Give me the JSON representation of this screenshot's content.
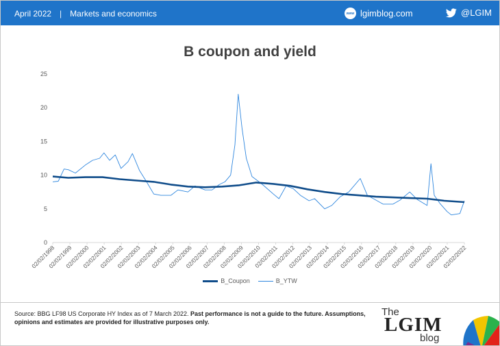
{
  "header": {
    "date": "April 2022",
    "separator": "|",
    "section": "Markets and economics",
    "site_icon_text": "www",
    "site": "lgimblog.com",
    "twitter": "@LGIM"
  },
  "footer": {
    "source_plain": "Source: BBG LF98 US Corporate HY Index as of 7 March 2022.",
    "source_bold": "Past performance is not a guide to the future. Assumptions, opinions and estimates are provided for illustrative purposes only.",
    "logo_the": "The",
    "logo_lgim": "LGIM",
    "logo_blog": "blog"
  },
  "colors": {
    "header_bg": "#1f74c9",
    "coupon": "#0f4c8a",
    "ytw": "#2e86de"
  },
  "chart_data": {
    "type": "line",
    "title": "B coupon and yield",
    "xlabel": "",
    "ylabel": "",
    "ylim": [
      0,
      25
    ],
    "yticks": [
      0,
      5,
      10,
      15,
      20,
      25
    ],
    "xlim": [
      "1998-02-02",
      "2022-03-07"
    ],
    "x_tick_labels": [
      "02/02/1998",
      "02/02/1999",
      "02/02/2000",
      "02/02/2001",
      "02/02/2002",
      "02/02/2003",
      "02/02/2004",
      "02/02/2005",
      "02/02/2006",
      "02/02/2007",
      "02/02/2008",
      "02/02/2009",
      "02/02/2010",
      "02/02/2011",
      "02/02/2012",
      "02/02/2013",
      "02/02/2014",
      "02/02/2015",
      "02/02/2016",
      "02/02/2017",
      "02/02/2018",
      "02/02/2019",
      "02/02/2020",
      "02/02/2021",
      "02/02/2022"
    ],
    "grid": false,
    "legend": "bottom",
    "series": [
      {
        "name": "B_Coupon",
        "x": [
          "1998-02-02",
          "1999-01-01",
          "2000-01-01",
          "2001-01-01",
          "2002-01-01",
          "2003-01-01",
          "2004-01-01",
          "2005-01-01",
          "2006-01-01",
          "2007-01-01",
          "2008-01-01",
          "2009-01-01",
          "2010-01-01",
          "2011-01-01",
          "2012-01-01",
          "2013-01-01",
          "2014-01-01",
          "2015-01-01",
          "2016-01-01",
          "2017-01-01",
          "2018-01-01",
          "2019-01-01",
          "2020-01-01",
          "2021-01-01",
          "2022-03-07"
        ],
        "values": [
          9.8,
          9.6,
          9.7,
          9.7,
          9.4,
          9.2,
          9.0,
          8.6,
          8.3,
          8.2,
          8.3,
          8.5,
          8.9,
          8.7,
          8.4,
          7.9,
          7.5,
          7.2,
          7.0,
          6.8,
          6.7,
          6.6,
          6.5,
          6.2,
          6.0
        ]
      },
      {
        "name": "B_YTW",
        "x": [
          "1998-02-02",
          "1998-06-01",
          "1998-10-01",
          "1999-01-01",
          "1999-06-01",
          "2000-01-01",
          "2000-06-01",
          "2000-11-01",
          "2001-02-01",
          "2001-06-01",
          "2001-10-01",
          "2002-02-01",
          "2002-07-01",
          "2002-10-01",
          "2003-03-01",
          "2003-08-01",
          "2004-01-01",
          "2004-06-01",
          "2005-01-01",
          "2005-06-01",
          "2006-01-01",
          "2006-06-01",
          "2007-01-01",
          "2007-06-01",
          "2007-11-01",
          "2008-03-01",
          "2008-07-01",
          "2008-10-01",
          "2008-12-10",
          "2009-03-01",
          "2009-06-01",
          "2009-10-01",
          "2010-03-01",
          "2010-06-01",
          "2011-01-01",
          "2011-05-01",
          "2011-10-01",
          "2012-03-01",
          "2012-08-01",
          "2013-02-01",
          "2013-06-01",
          "2014-01-01",
          "2014-06-01",
          "2014-12-01",
          "2015-06-01",
          "2016-02-01",
          "2016-07-01",
          "2017-01-01",
          "2017-06-01",
          "2018-01-01",
          "2018-06-01",
          "2018-12-25",
          "2019-06-01",
          "2020-01-01",
          "2020-03-23",
          "2020-06-01",
          "2020-10-01",
          "2021-03-01",
          "2021-06-01",
          "2021-12-01",
          "2022-03-07"
        ],
        "values": [
          9.0,
          9.1,
          10.9,
          10.8,
          10.3,
          11.5,
          12.2,
          12.5,
          13.3,
          12.2,
          13.0,
          11.0,
          12.0,
          13.2,
          10.7,
          9.0,
          7.2,
          7.0,
          7.0,
          7.8,
          7.5,
          8.4,
          7.8,
          7.8,
          8.6,
          9.0,
          10.0,
          14.5,
          22.0,
          17.0,
          12.5,
          9.8,
          9.0,
          8.5,
          7.2,
          6.5,
          8.4,
          8.0,
          7.0,
          6.2,
          6.5,
          5.0,
          5.5,
          6.8,
          7.5,
          9.5,
          7.0,
          6.3,
          5.7,
          5.7,
          6.3,
          7.5,
          6.4,
          5.5,
          11.7,
          7.0,
          5.8,
          4.6,
          4.1,
          4.3,
          6.2
        ]
      }
    ]
  }
}
